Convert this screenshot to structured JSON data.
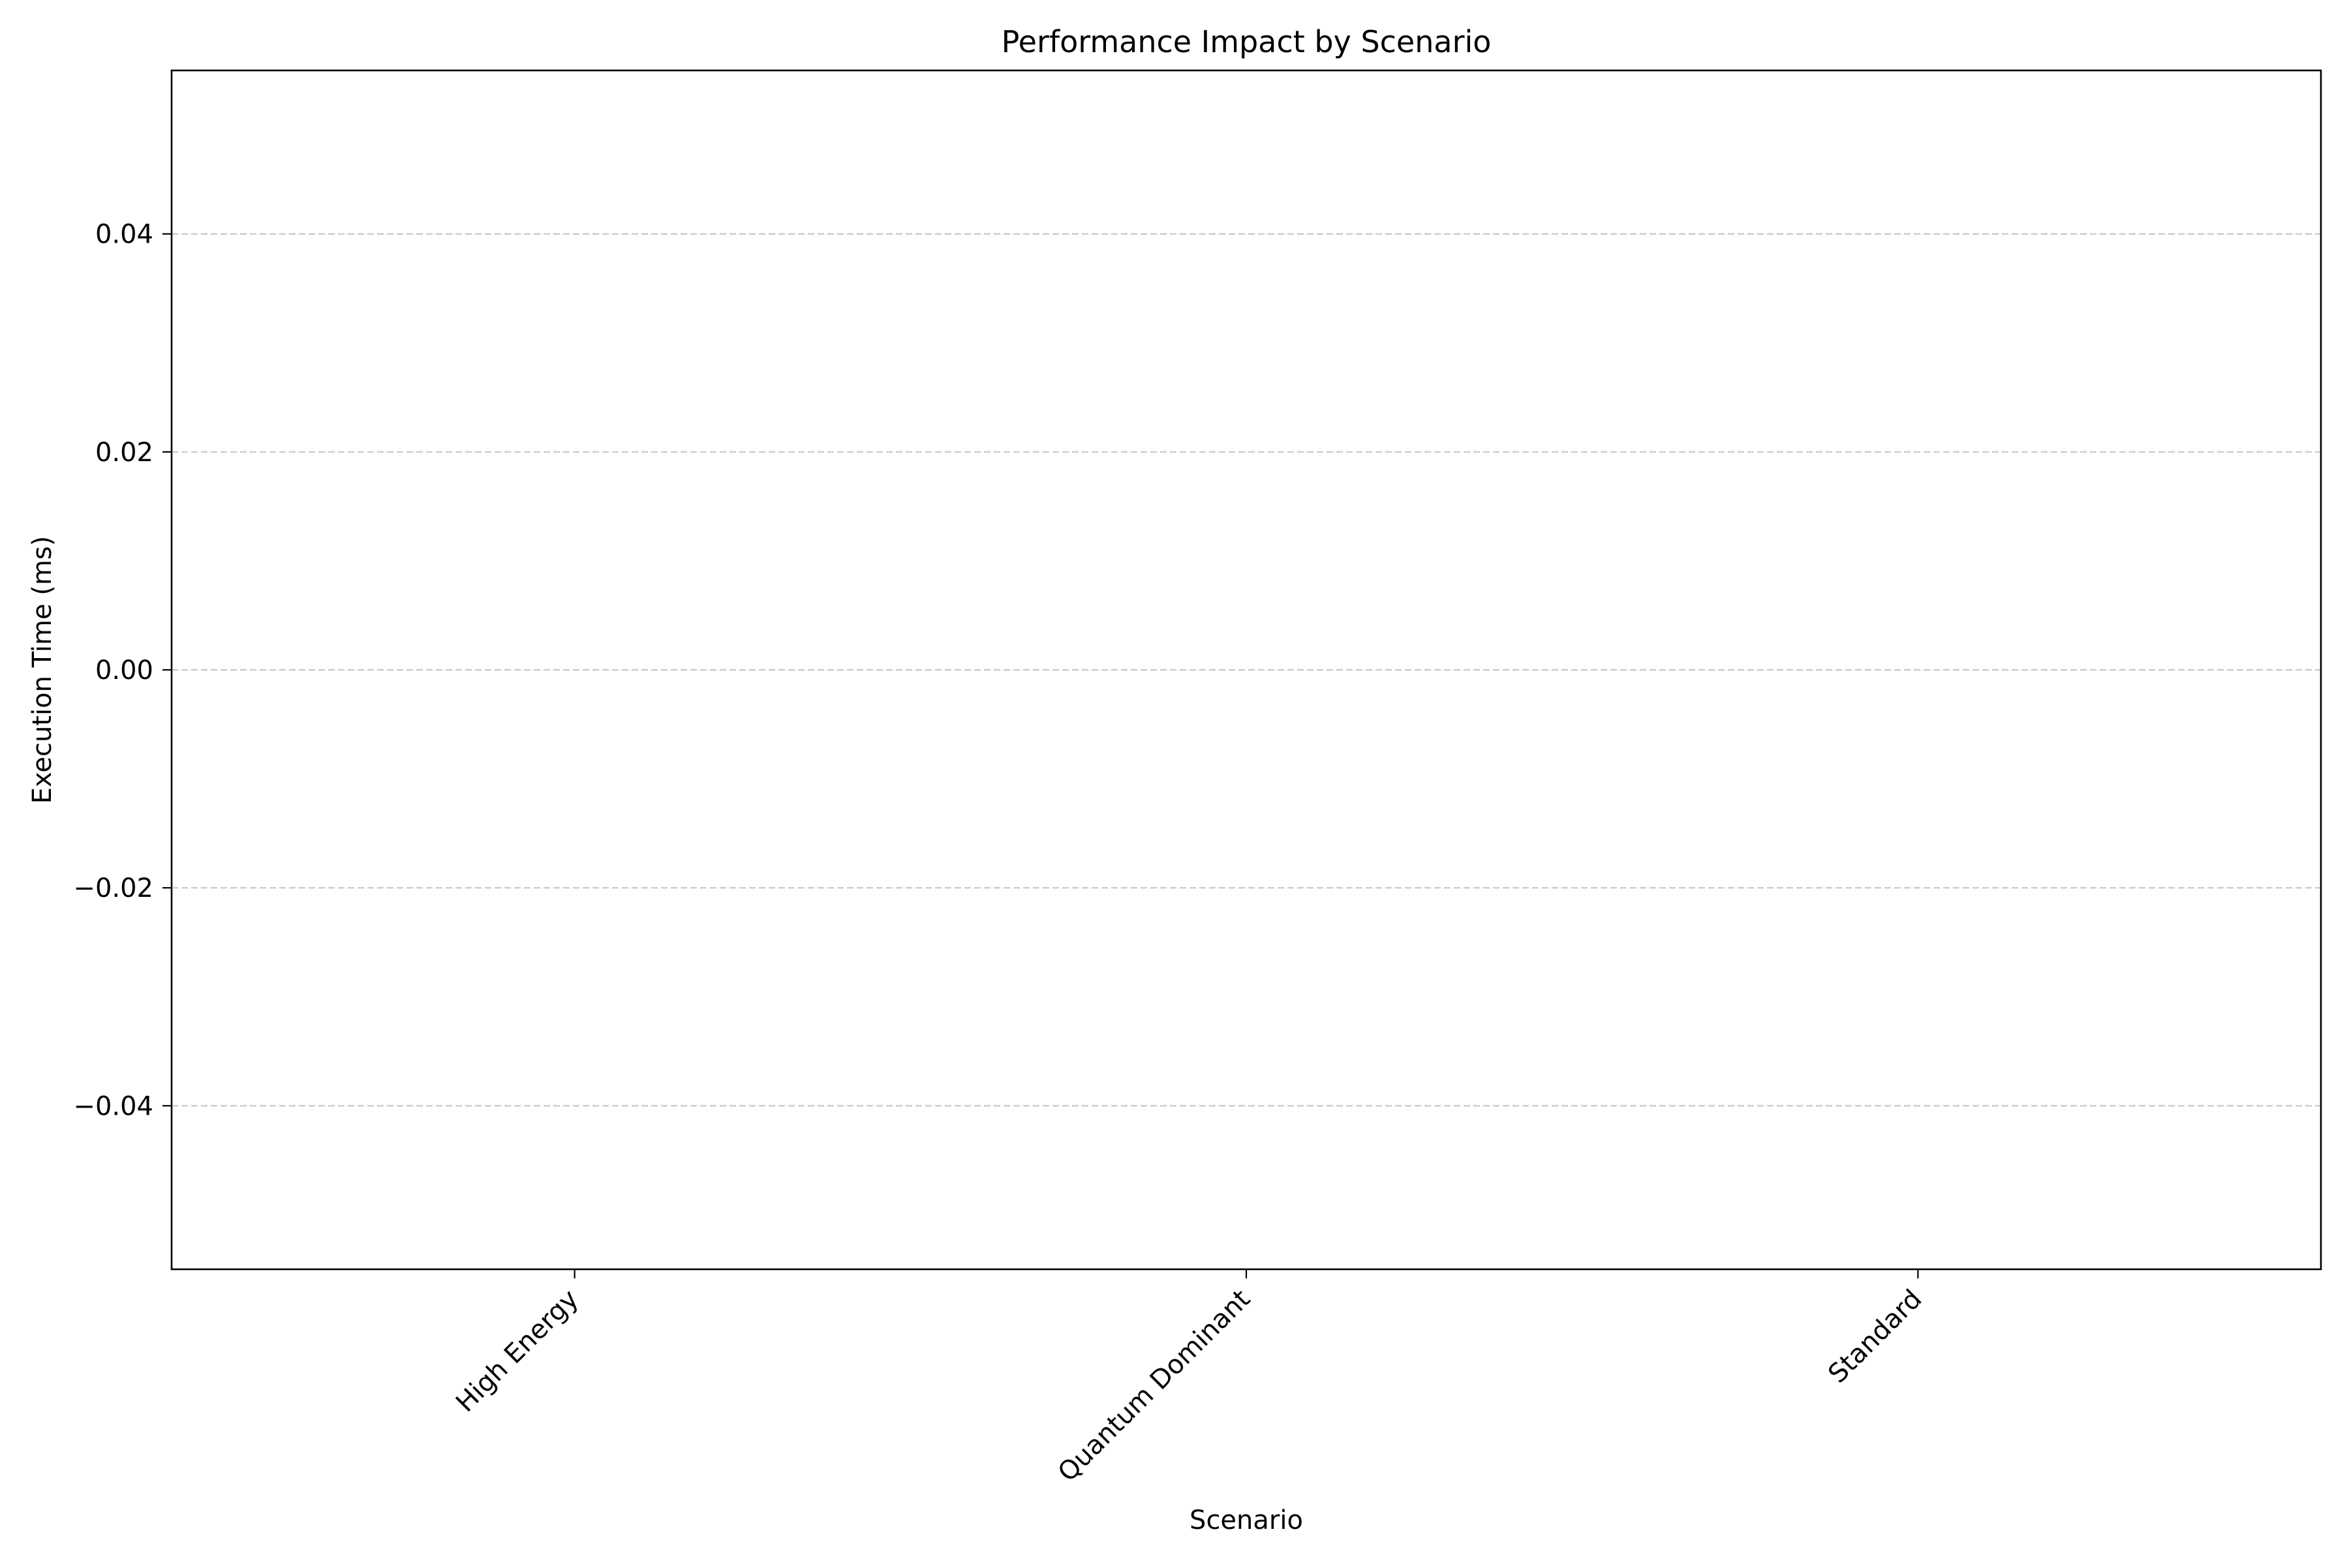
{
  "chart_data": {
    "type": "bar",
    "title": "Performance Impact by Scenario",
    "xlabel": "Scenario",
    "ylabel": "Execution Time (ms)",
    "categories": [
      "High Energy",
      "Quantum Dominant",
      "Standard"
    ],
    "values": [
      0,
      0,
      0
    ],
    "ylim": [
      -0.055,
      0.055
    ],
    "yticks": [
      0.04,
      0.02,
      0.0,
      -0.02,
      -0.04
    ],
    "ytick_labels": [
      "0.04",
      "0.02",
      "0.00",
      "−0.02",
      "−0.04"
    ],
    "grid": "y, dashed",
    "legend": "none",
    "colors": {
      "grid": "#c8c8c8",
      "axis": "#000000",
      "bar": "#4c72b0"
    }
  }
}
